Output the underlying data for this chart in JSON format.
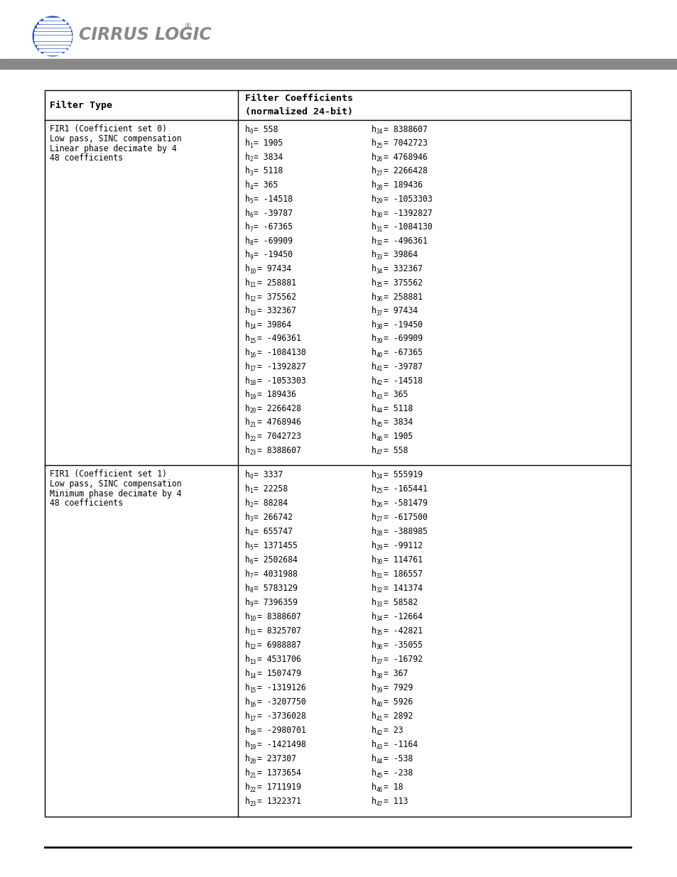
{
  "page_bg": "#ffffff",
  "header_bar_color": "#888888",
  "table_border_color": "#000000",
  "logo_text": "CIRRUS LOGIC",
  "col1_header": "Filter Type",
  "col2_header_line1": "Filter Coefficients",
  "col2_header_line2": "(normalized 24-bit)",
  "section1": {
    "filter_type_lines": [
      "FIR1 (Coefficient set 0)",
      "Low pass, SINC compensation",
      "Linear phase decimate by 4",
      "48 coefficients"
    ],
    "left_coeffs": [
      [
        "0",
        "= 558"
      ],
      [
        "1",
        "= 1905"
      ],
      [
        "2",
        "= 3834"
      ],
      [
        "3",
        "= 5118"
      ],
      [
        "4",
        "= 365"
      ],
      [
        "5",
        "= -14518"
      ],
      [
        "6",
        "= -39787"
      ],
      [
        "7",
        "= -67365"
      ],
      [
        "8",
        "= -69909"
      ],
      [
        "9",
        "= -19450"
      ],
      [
        "10",
        "= 97434"
      ],
      [
        "11",
        "= 258881"
      ],
      [
        "12",
        "= 375562"
      ],
      [
        "13",
        "= 332367"
      ],
      [
        "14",
        "= 39864"
      ],
      [
        "15",
        "= -496361"
      ],
      [
        "16",
        "= -1084130"
      ],
      [
        "17",
        "= -1392827"
      ],
      [
        "18",
        "= -1053303"
      ],
      [
        "19",
        "= 189436"
      ],
      [
        "20",
        "= 2266428"
      ],
      [
        "21",
        "= 4768946"
      ],
      [
        "22",
        "= 7042723"
      ],
      [
        "23",
        "= 8388607"
      ]
    ],
    "right_coeffs": [
      [
        "24",
        "= 8388607"
      ],
      [
        "25",
        "= 7042723"
      ],
      [
        "26",
        "= 4768946"
      ],
      [
        "27",
        "= 2266428"
      ],
      [
        "28",
        "= 189436"
      ],
      [
        "29",
        "= -1053303"
      ],
      [
        "30",
        "= -1392827"
      ],
      [
        "31",
        "= -1084130"
      ],
      [
        "32",
        "= -496361"
      ],
      [
        "33",
        "= 39864"
      ],
      [
        "34",
        "= 332367"
      ],
      [
        "35",
        "= 375562"
      ],
      [
        "36",
        "= 258881"
      ],
      [
        "37",
        "= 97434"
      ],
      [
        "38",
        "= -19450"
      ],
      [
        "39",
        "= -69909"
      ],
      [
        "40",
        "= -67365"
      ],
      [
        "41",
        "= -39787"
      ],
      [
        "42",
        "= -14518"
      ],
      [
        "43",
        "= 365"
      ],
      [
        "44",
        "= 5118"
      ],
      [
        "45",
        "= 3834"
      ],
      [
        "46",
        "= 1905"
      ],
      [
        "47",
        "= 558"
      ]
    ]
  },
  "section2": {
    "filter_type_lines": [
      "FIR1 (Coefficient set 1)",
      "Low pass, SINC compensation",
      "Minimum phase decimate by 4",
      "48 coefficients"
    ],
    "left_coeffs": [
      [
        "0",
        "= 3337"
      ],
      [
        "1",
        "= 22258"
      ],
      [
        "2",
        "= 88284"
      ],
      [
        "3",
        "= 266742"
      ],
      [
        "4",
        "= 655747"
      ],
      [
        "5",
        "= 1371455"
      ],
      [
        "6",
        "= 2502684"
      ],
      [
        "7",
        "= 4031988"
      ],
      [
        "8",
        "= 5783129"
      ],
      [
        "9",
        "= 7396359"
      ],
      [
        "10",
        "= 8388607"
      ],
      [
        "11",
        "= 8325707"
      ],
      [
        "12",
        "= 6988887"
      ],
      [
        "13",
        "= 4531706"
      ],
      [
        "14",
        "= 1507479"
      ],
      [
        "15",
        "= -1319126"
      ],
      [
        "16",
        "= -3207750"
      ],
      [
        "17",
        "= -3736028"
      ],
      [
        "18",
        "= -2980701"
      ],
      [
        "19",
        "= -1421498"
      ],
      [
        "20",
        "= 237307"
      ],
      [
        "21",
        "= 1373654"
      ],
      [
        "22",
        "= 1711919"
      ],
      [
        "23",
        "= 1322371"
      ]
    ],
    "right_coeffs": [
      [
        "24",
        "= 555919"
      ],
      [
        "25",
        "= -165441"
      ],
      [
        "26",
        "= -581479"
      ],
      [
        "27",
        "= -617500"
      ],
      [
        "28",
        "= -388985"
      ],
      [
        "29",
        "= -99112"
      ],
      [
        "30",
        "= 114761"
      ],
      [
        "31",
        "= 186557"
      ],
      [
        "32",
        "= 141374"
      ],
      [
        "33",
        "= 58582"
      ],
      [
        "34",
        "= -12664"
      ],
      [
        "35",
        "= -42821"
      ],
      [
        "36",
        "= -35055"
      ],
      [
        "37",
        "= -16792"
      ],
      [
        "38",
        "= 367"
      ],
      [
        "39",
        "= 7929"
      ],
      [
        "40",
        "= 5926"
      ],
      [
        "41",
        "= 2892"
      ],
      [
        "42",
        "= 23"
      ],
      [
        "43",
        "= -1164"
      ],
      [
        "44",
        "= -538"
      ],
      [
        "45",
        "= -238"
      ],
      [
        "46",
        "= 18"
      ],
      [
        "47",
        "= 113"
      ]
    ]
  }
}
